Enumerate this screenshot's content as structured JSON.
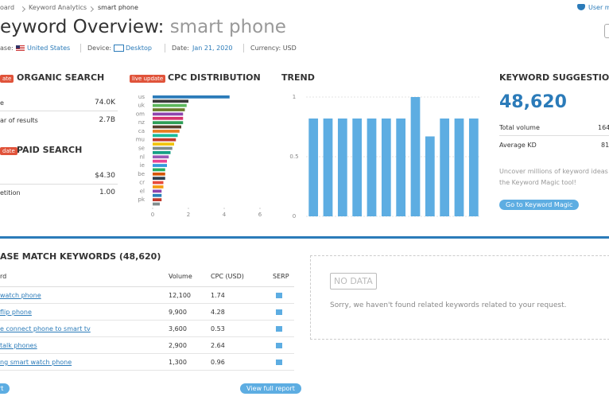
{
  "breadcrumb": [
    "oard",
    "Keyword Analytics",
    "smart phone"
  ],
  "user_link": "User m",
  "title": "eyword Overview:",
  "keyword": "smart phone",
  "filters": {
    "database_label": "ase:",
    "database": "United States",
    "device_label": "Device:",
    "device": "Desktop",
    "date_label": "Date:",
    "date": "Jan 21, 2020",
    "currency": "Currency: USD"
  },
  "organic": {
    "badge": "ate",
    "title": "ORGANIC SEARCH",
    "rows": [
      {
        "label": "e",
        "value": "74.0K"
      },
      {
        "label": "ar of results",
        "value": "2.7B"
      }
    ]
  },
  "paid": {
    "badge": "date",
    "title": "PAID SEARCH",
    "rows": [
      {
        "value": "$4.30"
      },
      {
        "label": "etition",
        "value": "1.00"
      }
    ]
  },
  "chart_data": [
    {
      "type": "bar",
      "horizontal": true,
      "annotation": "live update",
      "title": "CPC DISTRIBUTION",
      "categories": [
        "us",
        null,
        "uk",
        null,
        "om",
        null,
        "nz",
        null,
        "ca",
        null,
        "mu",
        null,
        "se",
        null,
        "nl",
        null,
        "ie",
        null,
        "be",
        null,
        "cr",
        null,
        "el",
        null,
        "pk",
        null
      ],
      "values": [
        4.3,
        2.0,
        1.9,
        1.8,
        1.7,
        1.7,
        1.7,
        1.6,
        1.5,
        1.4,
        1.3,
        1.2,
        1.1,
        1.0,
        0.9,
        0.8,
        0.8,
        0.7,
        0.7,
        0.7,
        0.6,
        0.6,
        0.5,
        0.5,
        0.5,
        0.4
      ],
      "colors": [
        "#2b7bb9",
        "#3a3a3a",
        "#5cb85c",
        "#6b7d2a",
        "#8e44ad",
        "#d6336c",
        "#2e9e57",
        "#5a3d2b",
        "#e67e22",
        "#1abc9c",
        "#c0392b",
        "#f1c40f",
        "#7f8c8d",
        "#16a085",
        "#9b59b6",
        "#e84393",
        "#3498db",
        "#27ae60",
        "#d35400",
        "#2c3e50",
        "#e74c3c",
        "#f39c12",
        "#8e44ad",
        "#2980b9",
        "#c0392b",
        "#7f8c8d"
      ],
      "xlim": [
        0,
        6
      ],
      "xticks": [
        0,
        2,
        4,
        6
      ]
    },
    {
      "type": "bar",
      "title": "TREND",
      "categories": [
        null,
        null,
        null,
        null,
        null,
        null,
        null,
        null,
        null,
        null,
        null,
        null
      ],
      "values": [
        0.82,
        0.82,
        0.82,
        0.82,
        0.82,
        0.82,
        0.82,
        1.0,
        0.67,
        0.82,
        0.82,
        0.82
      ],
      "color": "#5dade2",
      "ylim": [
        0,
        1
      ],
      "yticks": [
        0,
        0.5,
        1
      ],
      "grid": true
    }
  ],
  "suggestions": {
    "title": "KEYWORD SUGGESTIONS",
    "count": "48,620",
    "rows": [
      {
        "label": "Total volume",
        "value": "164"
      },
      {
        "label": "Average KD",
        "value": "81"
      }
    ],
    "text": "Uncover millions of keyword ideas",
    "text2": "the Keyword Magic tool!",
    "button": "Go to Keyword Magic"
  },
  "phrase_match": {
    "title": "ASE MATCH KEYWORDS (48,620)",
    "columns": [
      "rd",
      "Volume",
      "CPC (USD)",
      "SERP"
    ],
    "rows": [
      [
        "watch phone",
        "12,100",
        "1.74"
      ],
      [
        "flip phone",
        "9,900",
        "4.28"
      ],
      [
        "e connect phone to smart tv",
        "3,600",
        "0.53"
      ],
      [
        "talk phones",
        "2,900",
        "2.64"
      ],
      [
        "ng smart watch phone",
        "1,300",
        "0.96"
      ]
    ],
    "export": "rt",
    "view_full": "View full report"
  },
  "related": {
    "badge": "NO DATA",
    "message": "Sorry, we haven't found related keywords related to your request."
  }
}
